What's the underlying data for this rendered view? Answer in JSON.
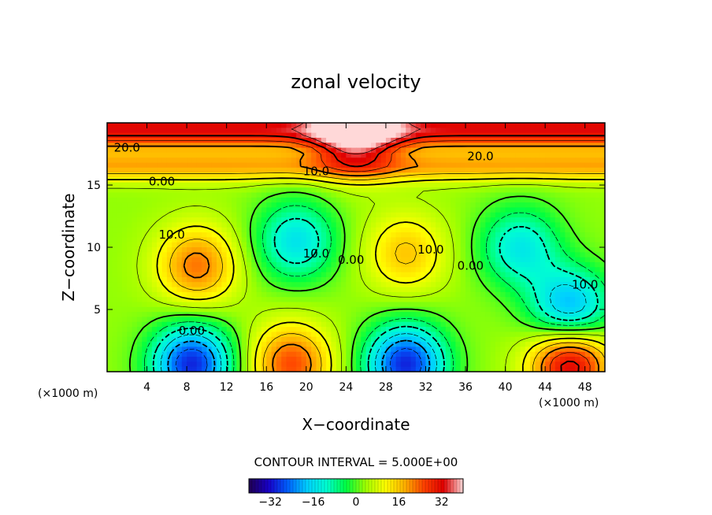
{
  "chart_data": {
    "type": "heatmap",
    "title": "zonal velocity",
    "xlabel": "X−coordinate",
    "ylabel": "Z−coordinate",
    "x_unit_left": "(×1000 m)",
    "x_unit_right": "(×1000 m)",
    "xlim": [
      0,
      50
    ],
    "ylim": [
      0,
      20
    ],
    "x_ticks": [
      4,
      8,
      12,
      16,
      20,
      24,
      28,
      32,
      36,
      40,
      44,
      48
    ],
    "y_ticks": [
      5,
      10,
      15
    ],
    "grid": false,
    "contour_interval_text": "CONTOUR INTERVAL = 5.000E+00",
    "contour_labels": [
      {
        "text": "20.0",
        "x": 2,
        "y": 18
      },
      {
        "text": "20.0",
        "x": 37.5,
        "y": 17.3
      },
      {
        "text": "10.0",
        "x": 21,
        "y": 16.1
      },
      {
        "text": "0.00",
        "x": 5.5,
        "y": 15.3
      },
      {
        "text": "10.0",
        "x": 6.5,
        "y": 11
      },
      {
        "text": "10.0",
        "x": 21,
        "y": 9.5
      },
      {
        "text": "0.00",
        "x": 24.5,
        "y": 9
      },
      {
        "text": "10.0",
        "x": 32.5,
        "y": 9.8
      },
      {
        "text": "0.00",
        "x": 36.5,
        "y": 8.5
      },
      {
        "text": "10.0",
        "x": 48,
        "y": 7
      },
      {
        "text": "0.00",
        "x": 8.5,
        "y": 3.3
      }
    ],
    "field_features": [
      {
        "kind": "max",
        "x": 25,
        "y": 19.5,
        "value": 30
      },
      {
        "kind": "min",
        "x": 8.5,
        "y": 0.6,
        "value": -30
      },
      {
        "kind": "max",
        "x": 18.5,
        "y": 0.6,
        "value": 25
      },
      {
        "kind": "min",
        "x": 30,
        "y": 0.6,
        "value": -30
      },
      {
        "kind": "max",
        "x": 46.5,
        "y": 0.7,
        "value": 35
      },
      {
        "kind": "max",
        "x": 9,
        "y": 8.5,
        "value": 22
      },
      {
        "kind": "max",
        "x": 30,
        "y": 9.5,
        "value": 16
      },
      {
        "kind": "min",
        "x": 19,
        "y": 10.5,
        "value": -15
      },
      {
        "kind": "min",
        "x": 41.5,
        "y": 10,
        "value": -14
      },
      {
        "kind": "min",
        "x": 46.5,
        "y": 5,
        "value": -22
      }
    ],
    "colorbar": {
      "min": -40,
      "max": 40,
      "tick_values": [
        -32,
        -16,
        0,
        16,
        32
      ],
      "tick_labels": [
        "−32",
        "−16",
        "0",
        "16",
        "32"
      ]
    },
    "colormap": [
      "#200050",
      "#1800c8",
      "#0060ff",
      "#00d0ff",
      "#00ffd0",
      "#00ff40",
      "#a0ff00",
      "#ffff00",
      "#ffb000",
      "#ff4000",
      "#e00000",
      "#ffd8d8"
    ]
  }
}
